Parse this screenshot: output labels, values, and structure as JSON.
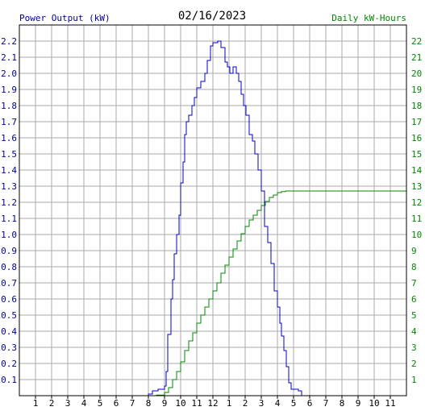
{
  "chart_data": {
    "type": "line",
    "title": "02/16/2023",
    "left_axis_label": "Power Output (kW)",
    "right_axis_label": "Daily kW-Hours",
    "colors": {
      "power": "#0000cc",
      "energy": "#008800",
      "grid": "#aaaaaa",
      "left_axis_text": "#000099",
      "right_axis_text": "#008800",
      "title_text": "#000000"
    },
    "x_ticks": [
      "1",
      "2",
      "3",
      "4",
      "5",
      "6",
      "7",
      "8",
      "9",
      "10",
      "11",
      "12",
      "1",
      "2",
      "3",
      "4",
      "5",
      "6",
      "7",
      "8",
      "9",
      "10",
      "11"
    ],
    "left_ticks": [
      "0.1",
      "0.2",
      "0.3",
      "0.4",
      "0.5",
      "0.6",
      "0.7",
      "0.8",
      "0.9",
      "1.0",
      "1.1",
      "1.2",
      "1.3",
      "1.4",
      "1.5",
      "1.6",
      "1.7",
      "1.8",
      "1.9",
      "2.0",
      "2.1",
      "2.2"
    ],
    "right_ticks": [
      "1",
      "2",
      "3",
      "4",
      "5",
      "6",
      "7",
      "8",
      "9",
      "10",
      "11",
      "12",
      "13",
      "14",
      "15",
      "16",
      "17",
      "18",
      "19",
      "20",
      "21",
      "22"
    ],
    "x_range_hours": [
      0,
      24
    ],
    "left_range_kw": [
      0,
      2.3
    ],
    "right_range_kwh": [
      0,
      23
    ],
    "series": [
      {
        "name": "Power Output (kW)",
        "axis": "left",
        "points": [
          [
            7.8,
            0
          ],
          [
            8.0,
            0.01
          ],
          [
            8.25,
            0.03
          ],
          [
            8.6,
            0.04
          ],
          [
            9.0,
            0.06
          ],
          [
            9.1,
            0.15
          ],
          [
            9.2,
            0.38
          ],
          [
            9.4,
            0.6
          ],
          [
            9.5,
            0.72
          ],
          [
            9.6,
            0.88
          ],
          [
            9.75,
            1.0
          ],
          [
            9.9,
            1.12
          ],
          [
            10.0,
            1.32
          ],
          [
            10.15,
            1.45
          ],
          [
            10.25,
            1.62
          ],
          [
            10.35,
            1.7
          ],
          [
            10.5,
            1.74
          ],
          [
            10.7,
            1.8
          ],
          [
            10.85,
            1.85
          ],
          [
            11.0,
            1.91
          ],
          [
            11.25,
            1.95
          ],
          [
            11.5,
            2.0
          ],
          [
            11.65,
            2.08
          ],
          [
            11.85,
            2.17
          ],
          [
            12.0,
            2.19
          ],
          [
            12.3,
            2.2
          ],
          [
            12.5,
            2.16
          ],
          [
            12.75,
            2.07
          ],
          [
            12.9,
            2.04
          ],
          [
            13.05,
            2.0
          ],
          [
            13.25,
            2.04
          ],
          [
            13.45,
            2.0
          ],
          [
            13.6,
            1.95
          ],
          [
            13.75,
            1.87
          ],
          [
            13.9,
            1.8
          ],
          [
            14.05,
            1.74
          ],
          [
            14.25,
            1.62
          ],
          [
            14.45,
            1.58
          ],
          [
            14.6,
            1.5
          ],
          [
            14.8,
            1.4
          ],
          [
            15.0,
            1.27
          ],
          [
            15.2,
            1.05
          ],
          [
            15.4,
            0.95
          ],
          [
            15.6,
            0.82
          ],
          [
            15.8,
            0.65
          ],
          [
            16.0,
            0.55
          ],
          [
            16.15,
            0.45
          ],
          [
            16.25,
            0.37
          ],
          [
            16.4,
            0.28
          ],
          [
            16.55,
            0.18
          ],
          [
            16.7,
            0.08
          ],
          [
            16.85,
            0.04
          ],
          [
            17.1,
            0.04
          ],
          [
            17.3,
            0.03
          ],
          [
            17.45,
            0.03
          ],
          [
            17.5,
            0
          ]
        ]
      },
      {
        "name": "Daily kW-Hours",
        "axis": "right",
        "points": [
          [
            7.8,
            0
          ],
          [
            8.5,
            0.04
          ],
          [
            9.0,
            0.2
          ],
          [
            9.25,
            0.5
          ],
          [
            9.5,
            1.0
          ],
          [
            9.75,
            1.5
          ],
          [
            10.0,
            2.1
          ],
          [
            10.25,
            2.8
          ],
          [
            10.5,
            3.4
          ],
          [
            10.75,
            3.9
          ],
          [
            11.0,
            4.5
          ],
          [
            11.25,
            5.0
          ],
          [
            11.5,
            5.5
          ],
          [
            11.75,
            6.0
          ],
          [
            12.0,
            6.5
          ],
          [
            12.25,
            7.0
          ],
          [
            12.5,
            7.6
          ],
          [
            12.75,
            8.1
          ],
          [
            13.0,
            8.6
          ],
          [
            13.25,
            9.1
          ],
          [
            13.5,
            9.6
          ],
          [
            13.75,
            10.05
          ],
          [
            14.0,
            10.5
          ],
          [
            14.25,
            10.9
          ],
          [
            14.5,
            11.2
          ],
          [
            14.75,
            11.5
          ],
          [
            15.0,
            11.8
          ],
          [
            15.25,
            12.05
          ],
          [
            15.5,
            12.3
          ],
          [
            15.75,
            12.45
          ],
          [
            16.0,
            12.6
          ],
          [
            16.25,
            12.66
          ],
          [
            16.5,
            12.7
          ],
          [
            17.0,
            12.7
          ],
          [
            24.0,
            12.7
          ]
        ]
      }
    ],
    "grid": true
  }
}
